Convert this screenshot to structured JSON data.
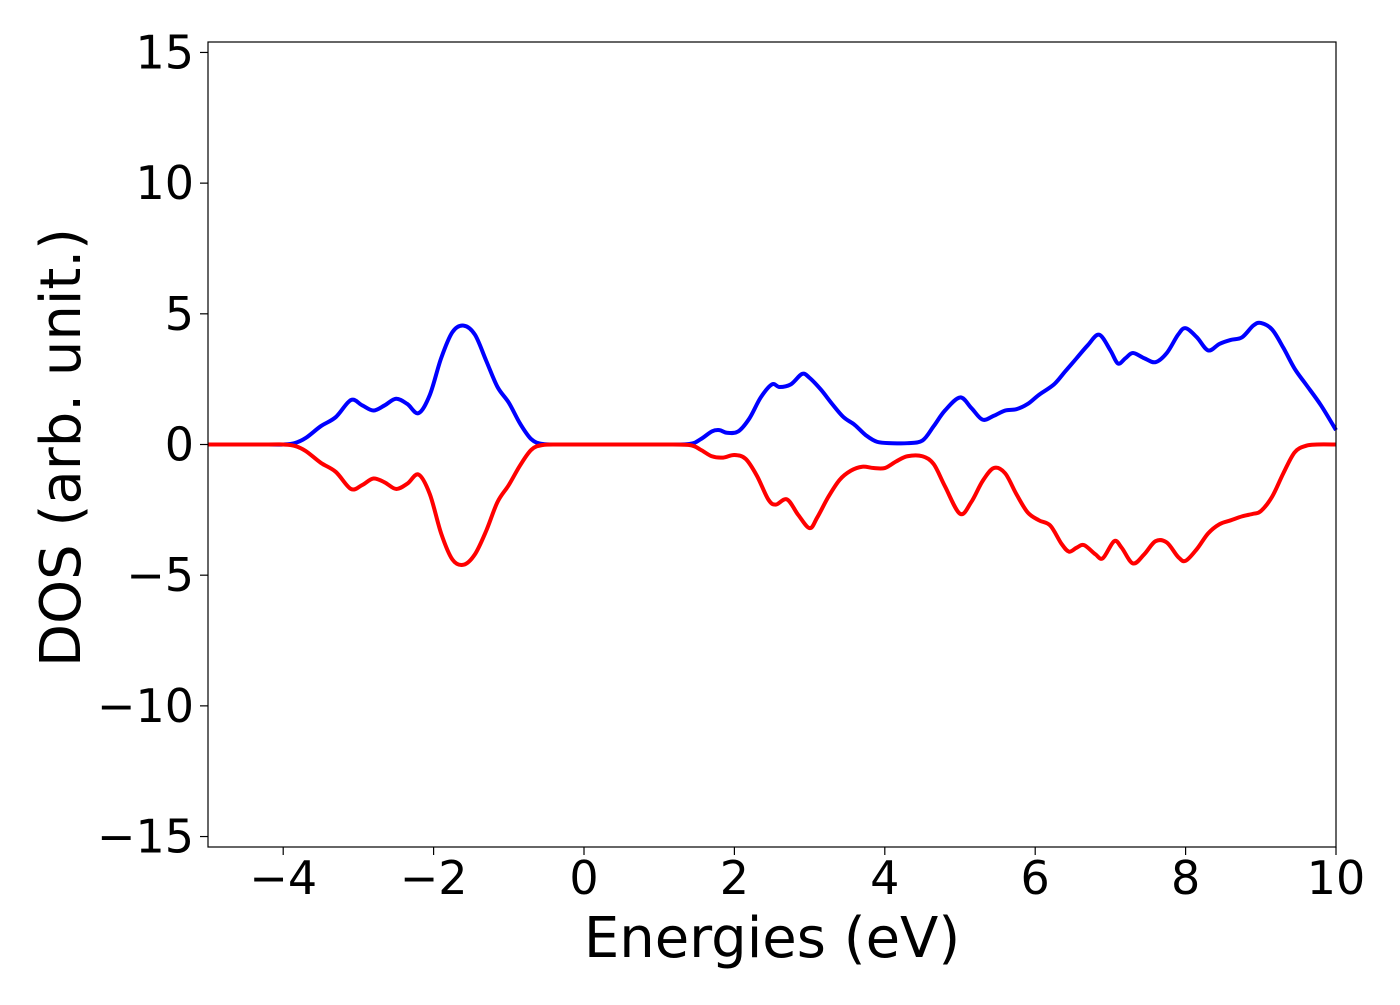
{
  "chart_data": {
    "type": "line",
    "title": "",
    "xlabel": "Energies (eV)",
    "ylabel": "DOS (arb. unit.)",
    "xlim": [
      -5,
      10
    ],
    "ylim": [
      -15.4,
      15.4
    ],
    "xticks": [
      -4,
      -2,
      0,
      2,
      4,
      6,
      8,
      10
    ],
    "xtick_labels": [
      "−4",
      "−2",
      "0",
      "2",
      "4",
      "6",
      "8",
      "10"
    ],
    "yticks": [
      -15,
      -10,
      -5,
      0,
      5,
      10,
      15
    ],
    "ytick_labels": [
      "−15",
      "−10",
      "−5",
      "0",
      "5",
      "10",
      "15"
    ],
    "grid": false,
    "legend": "none",
    "series": [
      {
        "color": "#0000ff",
        "x": [
          -5,
          -4.2,
          -4,
          -3.85,
          -3.7,
          -3.5,
          -3.3,
          -3.1,
          -2.95,
          -2.8,
          -2.65,
          -2.5,
          -2.35,
          -2.2,
          -2.05,
          -1.9,
          -1.75,
          -1.6,
          -1.45,
          -1.3,
          -1.15,
          -1.0,
          -0.85,
          -0.7,
          -0.55,
          -0.3,
          0,
          0.5,
          1.0,
          1.4,
          1.55,
          1.7,
          1.8,
          1.9,
          2.05,
          2.2,
          2.35,
          2.5,
          2.6,
          2.75,
          2.9,
          3.0,
          3.15,
          3.3,
          3.45,
          3.6,
          3.75,
          3.9,
          4.1,
          4.3,
          4.5,
          4.65,
          4.8,
          5.0,
          5.15,
          5.3,
          5.45,
          5.6,
          5.75,
          5.9,
          6.05,
          6.25,
          6.4,
          6.55,
          6.7,
          6.85,
          7.0,
          7.1,
          7.2,
          7.3,
          7.45,
          7.6,
          7.75,
          7.9,
          8.0,
          8.15,
          8.3,
          8.45,
          8.6,
          8.75,
          8.9,
          9.0,
          9.15,
          9.3,
          9.45,
          9.6,
          9.8,
          10.0
        ],
        "y": [
          0,
          0,
          0,
          0.05,
          0.25,
          0.7,
          1.05,
          1.7,
          1.5,
          1.3,
          1.5,
          1.75,
          1.55,
          1.2,
          1.9,
          3.3,
          4.3,
          4.55,
          4.2,
          3.2,
          2.2,
          1.6,
          0.8,
          0.2,
          0.02,
          0,
          0,
          0,
          0,
          0.02,
          0.2,
          0.5,
          0.55,
          0.45,
          0.5,
          1.0,
          1.8,
          2.3,
          2.2,
          2.3,
          2.7,
          2.55,
          2.1,
          1.55,
          1.05,
          0.75,
          0.35,
          0.1,
          0.05,
          0.05,
          0.15,
          0.7,
          1.3,
          1.8,
          1.4,
          0.95,
          1.1,
          1.3,
          1.35,
          1.55,
          1.9,
          2.3,
          2.8,
          3.3,
          3.8,
          4.2,
          3.6,
          3.1,
          3.3,
          3.5,
          3.3,
          3.15,
          3.5,
          4.2,
          4.45,
          4.1,
          3.6,
          3.85,
          4.0,
          4.1,
          4.55,
          4.65,
          4.4,
          3.7,
          2.9,
          2.3,
          1.5,
          0.55
        ]
      },
      {
        "color": "#ff0000",
        "x": [
          -5,
          -4.2,
          -4,
          -3.85,
          -3.7,
          -3.5,
          -3.3,
          -3.1,
          -2.95,
          -2.8,
          -2.65,
          -2.5,
          -2.35,
          -2.2,
          -2.05,
          -1.9,
          -1.75,
          -1.6,
          -1.45,
          -1.3,
          -1.15,
          -1.0,
          -0.85,
          -0.7,
          -0.55,
          -0.3,
          0,
          0.5,
          1.0,
          1.4,
          1.55,
          1.7,
          1.85,
          2.0,
          2.15,
          2.3,
          2.45,
          2.55,
          2.7,
          2.85,
          3.0,
          3.1,
          3.25,
          3.4,
          3.55,
          3.7,
          3.85,
          4.0,
          4.15,
          4.3,
          4.5,
          4.65,
          4.8,
          5.0,
          5.15,
          5.3,
          5.45,
          5.6,
          5.75,
          5.9,
          6.05,
          6.2,
          6.35,
          6.45,
          6.55,
          6.65,
          6.8,
          6.9,
          7.05,
          7.15,
          7.3,
          7.45,
          7.6,
          7.75,
          7.9,
          8.0,
          8.15,
          8.3,
          8.45,
          8.6,
          8.75,
          8.9,
          9.0,
          9.15,
          9.3,
          9.45,
          9.6,
          9.75,
          10.0
        ],
        "y": [
          0,
          0,
          0,
          -0.05,
          -0.25,
          -0.7,
          -1.05,
          -1.7,
          -1.55,
          -1.3,
          -1.45,
          -1.7,
          -1.5,
          -1.15,
          -1.9,
          -3.4,
          -4.4,
          -4.6,
          -4.2,
          -3.3,
          -2.2,
          -1.55,
          -0.8,
          -0.2,
          -0.02,
          0,
          0,
          0,
          0,
          -0.02,
          -0.2,
          -0.45,
          -0.5,
          -0.4,
          -0.55,
          -1.2,
          -2.1,
          -2.3,
          -2.1,
          -2.7,
          -3.2,
          -2.8,
          -2.0,
          -1.35,
          -1.0,
          -0.85,
          -0.9,
          -0.9,
          -0.65,
          -0.45,
          -0.45,
          -0.75,
          -1.6,
          -2.65,
          -2.2,
          -1.4,
          -0.9,
          -1.1,
          -1.9,
          -2.6,
          -2.9,
          -3.1,
          -3.8,
          -4.1,
          -3.95,
          -3.85,
          -4.2,
          -4.35,
          -3.7,
          -3.95,
          -4.55,
          -4.2,
          -3.7,
          -3.75,
          -4.3,
          -4.45,
          -4.0,
          -3.4,
          -3.05,
          -2.9,
          -2.75,
          -2.65,
          -2.55,
          -2.0,
          -1.1,
          -0.3,
          -0.05,
          0,
          0
        ]
      }
    ]
  }
}
